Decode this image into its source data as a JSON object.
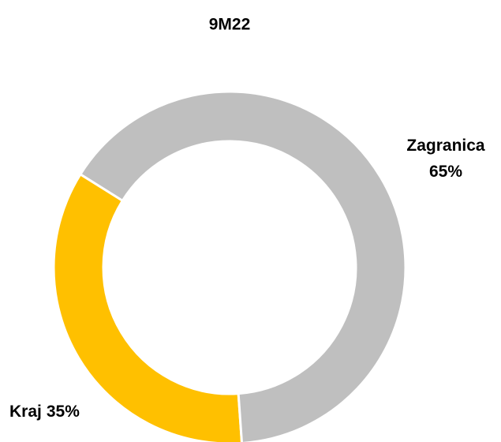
{
  "chart_data": {
    "type": "pie",
    "title": "9M22",
    "donut": true,
    "categories": [
      "Kraj",
      "Zagranica"
    ],
    "values": [
      35,
      65
    ],
    "value_labels": [
      "35%",
      "65%"
    ],
    "colors": [
      "#FFC000",
      "#BFBFBF"
    ]
  }
}
